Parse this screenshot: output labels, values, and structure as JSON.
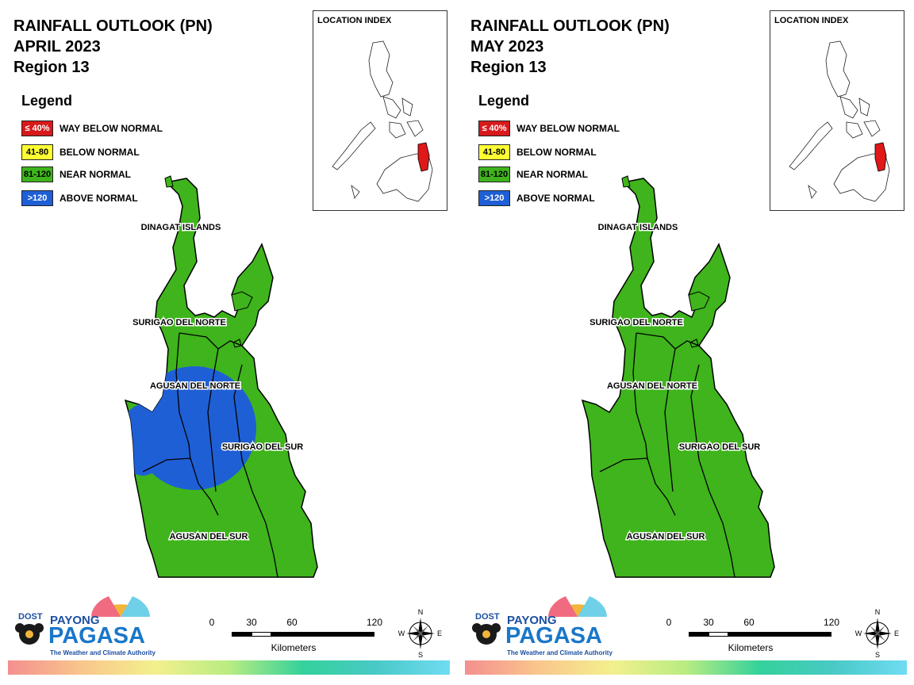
{
  "panels": [
    {
      "title_line1": "RAINFALL OUTLOOK (PN)",
      "title_line2": "APRIL 2023",
      "title_line3": "Region 13"
    },
    {
      "title_line1": "RAINFALL OUTLOOK (PN)",
      "title_line2": "MAY 2023",
      "title_line3": "Region 13"
    }
  ],
  "legend": {
    "title": "Legend",
    "items": [
      {
        "code": "≤ 40%",
        "label": "WAY BELOW NORMAL",
        "color": "#d7191c",
        "text_color": "#ffffff"
      },
      {
        "code": "41-80",
        "label": "BELOW NORMAL",
        "color": "#ffff33",
        "text_color": "#000000"
      },
      {
        "code": "81-120",
        "label": "NEAR NORMAL",
        "color": "#3fb41c",
        "text_color": "#000000"
      },
      {
        "code": ">120",
        "label": "ABOVE NORMAL",
        "color": "#1f5fd6",
        "text_color": "#ffffff"
      }
    ]
  },
  "provinces": {
    "dinagat": "DINAGAT ISLANDS",
    "surigao_norte": "SURIGAO DEL NORTE",
    "agusan_norte": "AGUSAN DEL NORTE",
    "surigao_sur": "SURIGAO DEL SUR",
    "agusan_sur": "AGUSAN DEL SUR"
  },
  "location_index": {
    "title": "LOCATION INDEX"
  },
  "scale": {
    "ticks": [
      "0",
      "30",
      "60",
      "120"
    ],
    "unit": "Kilometers"
  },
  "compass": {
    "n": "N",
    "s": "S",
    "e": "E",
    "w": "W"
  },
  "logo": {
    "dost": "DOST",
    "payong": "PAYONG",
    "pagasa": "PAGASA",
    "tagline": "The Weather and Climate Authority"
  },
  "colors": {
    "near_normal": "#3fb41c",
    "above_normal": "#1f5fd6",
    "highlight": "#e01818"
  }
}
